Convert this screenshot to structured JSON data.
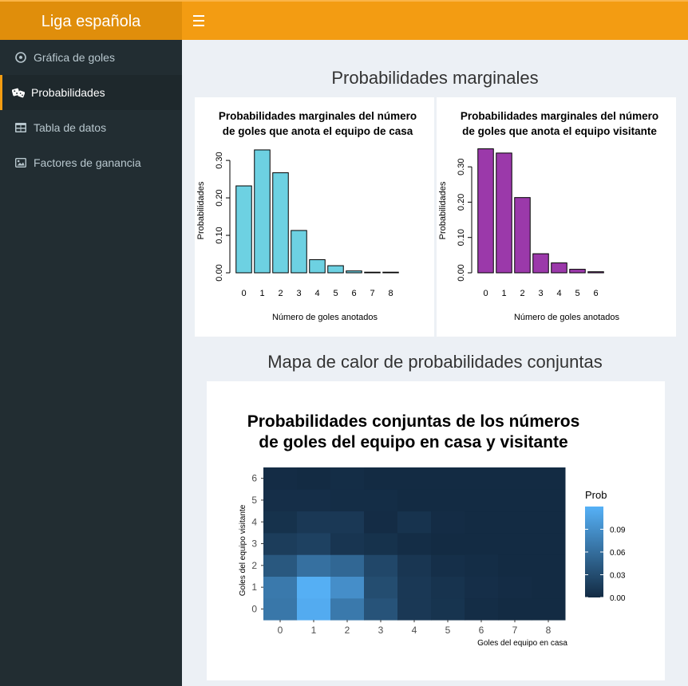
{
  "header": {
    "brand": "Liga española"
  },
  "sidebar": {
    "items": [
      {
        "label": "Gráfica de goles",
        "icon": "soccer-ball-icon"
      },
      {
        "label": "Probabilidades",
        "icon": "dice-icon",
        "active": true
      },
      {
        "label": "Tabla de datos",
        "icon": "table-icon"
      },
      {
        "label": "Factores de ganancia",
        "icon": "image-icon"
      }
    ]
  },
  "main": {
    "section1_title": "Probabilidades marginales",
    "section2_title": "Mapa de calor de probabilidades conjuntas"
  },
  "chart_data": [
    {
      "type": "bar",
      "title": "Probabilidades marginales del número de goles que anota el equipo de casa",
      "title_lines": [
        "Probabilidades marginales del número",
        "de goles que anota el equipo de casa"
      ],
      "xlabel": "Número de goles anotados",
      "ylabel": "Probabilidades",
      "categories": [
        "0",
        "1",
        "2",
        "3",
        "4",
        "5",
        "6",
        "7",
        "8"
      ],
      "values": [
        0.232,
        0.328,
        0.267,
        0.113,
        0.035,
        0.019,
        0.005,
        0.001,
        0.001
      ],
      "ylim": [
        0,
        0.33
      ],
      "yticks": [
        0.0,
        0.1,
        0.2,
        0.3
      ],
      "ytick_labels": [
        "0.00",
        "0.10",
        "0.20",
        "0.30"
      ],
      "color": "#6dd1e2"
    },
    {
      "type": "bar",
      "title": "Probabilidades marginales del número de goles que anota el equipo visitante",
      "title_lines": [
        "Probabilidades marginales del número",
        "de goles que anota el equipo visitante"
      ],
      "xlabel": "Número de goles anotados",
      "ylabel": "Probabilidades",
      "categories": [
        "0",
        "1",
        "2",
        "3",
        "4",
        "5",
        "6"
      ],
      "values": [
        0.351,
        0.339,
        0.213,
        0.054,
        0.028,
        0.01,
        0.003
      ],
      "ylim": [
        0,
        0.35
      ],
      "yticks": [
        0.0,
        0.1,
        0.2,
        0.3
      ],
      "ytick_labels": [
        "0.00",
        "0.10",
        "0.20",
        "0.30"
      ],
      "color": "#9b39aa"
    },
    {
      "type": "heatmap",
      "title": "Probabilidades conjuntas de los números de goles del equipo en casa y visitante",
      "title_lines": [
        "Probabilidades conjuntas de los números",
        "de goles del equipo en casa y visitante"
      ],
      "xlabel": "Goles del equipo en casa",
      "ylabel": "Goles del equipo visitante",
      "x": [
        "0",
        "1",
        "2",
        "3",
        "4",
        "5",
        "6",
        "7",
        "8"
      ],
      "y": [
        "0",
        "1",
        "2",
        "3",
        "4",
        "5",
        "6"
      ],
      "z": [
        [
          0.068,
          0.115,
          0.07,
          0.036,
          0.012,
          0.008,
          0.002,
          0.0,
          0.0
        ],
        [
          0.07,
          0.118,
          0.089,
          0.03,
          0.012,
          0.007,
          0.003,
          0.001,
          0.0
        ],
        [
          0.04,
          0.062,
          0.054,
          0.025,
          0.01,
          0.004,
          0.002,
          0.0,
          0.0
        ],
        [
          0.016,
          0.02,
          0.009,
          0.006,
          0.002,
          0.0,
          0.0,
          0.0,
          0.0
        ],
        [
          0.006,
          0.012,
          0.012,
          0.001,
          0.007,
          0.001,
          0.0,
          0.0,
          0.0
        ],
        [
          0.003,
          0.003,
          0.002,
          0.002,
          0.0,
          0.0,
          0.0,
          0.0,
          0.0
        ],
        [
          0.001,
          0.0,
          0.002,
          0.0,
          0.0,
          0.0,
          0.0,
          0.0,
          0.0
        ]
      ],
      "zlim": [
        0,
        0.12
      ],
      "legend_title": "Prob",
      "legend_ticks": [
        0.0,
        0.03,
        0.06,
        0.09
      ],
      "legend_tick_labels": [
        "0.00",
        "0.03",
        "0.06",
        "0.09"
      ],
      "colors": {
        "low": "#132b43",
        "high": "#56b1f7"
      }
    }
  ]
}
